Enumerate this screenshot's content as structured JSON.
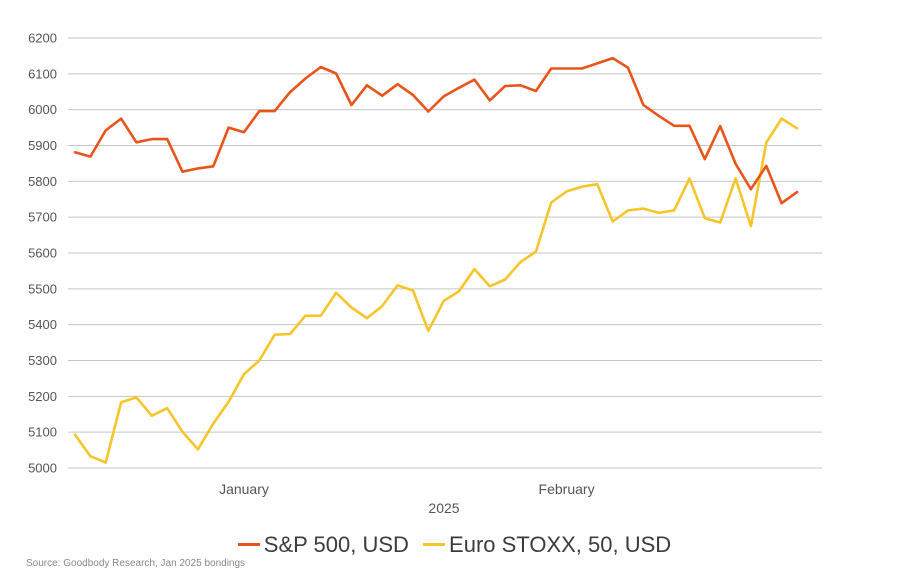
{
  "chart_data": {
    "type": "line",
    "xlabel": "2025",
    "ylabel": "",
    "ylim": [
      5000,
      6200
    ],
    "yticks": [
      5000,
      5100,
      5200,
      5300,
      5400,
      5500,
      5600,
      5700,
      5800,
      5900,
      6000,
      6100,
      6200
    ],
    "x_tick_labels": [
      {
        "label": "January",
        "index": 11
      },
      {
        "label": "February",
        "index": 32
      }
    ],
    "grid": true,
    "legend_position": "bottom",
    "series": [
      {
        "name": "S&P 500, USD",
        "color": "#e8541a",
        "values": [
          5881,
          5869,
          5942,
          5975,
          5909,
          5918,
          5918,
          5827,
          5836,
          5842,
          5950,
          5937,
          5996,
          5996,
          6049,
          6087,
          6119,
          6101,
          6013,
          6068,
          6039,
          6071,
          6041,
          5995,
          6037,
          6061,
          6084,
          6026,
          6066,
          6068,
          6052,
          6115,
          6115,
          6115,
          6129,
          6144,
          6117,
          6013,
          5983,
          5955,
          5955,
          5862,
          5954,
          5849,
          5778,
          5843,
          5739,
          5770
        ]
      },
      {
        "name": "Euro STOXX, 50, USD",
        "color": "#f5c52a",
        "values": [
          5093,
          5033,
          5015,
          5183,
          5197,
          5146,
          5167,
          5101,
          5052,
          5124,
          5185,
          5262,
          5300,
          5372,
          5374,
          5425,
          5425,
          5489,
          5448,
          5418,
          5452,
          5510,
          5495,
          5383,
          5466,
          5493,
          5555,
          5507,
          5526,
          5575,
          5604,
          5741,
          5772,
          5785,
          5792,
          5688,
          5719,
          5724,
          5712,
          5719,
          5808,
          5697,
          5685,
          5808,
          5675,
          5908,
          5975,
          5948
        ]
      }
    ]
  },
  "source_text": "Source: Goodbody Research, Jan 2025 bondings"
}
